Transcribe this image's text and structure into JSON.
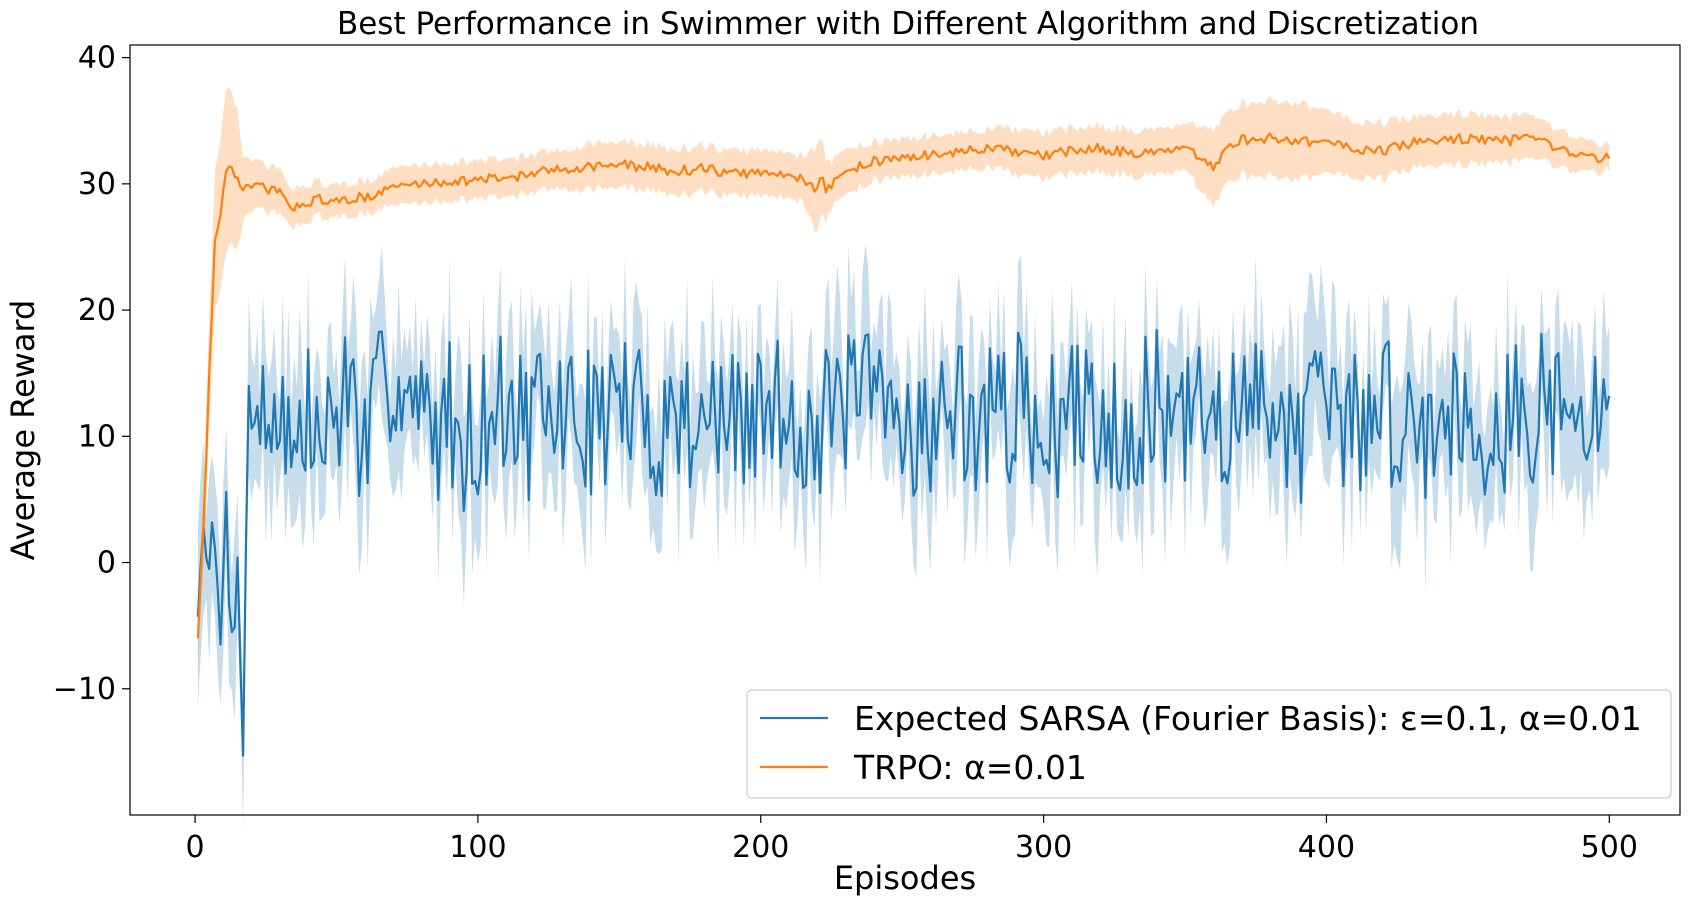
{
  "chart_data": {
    "type": "line",
    "title": "Best Performance in Swimmer with Different Algorithm and Discretization",
    "xlabel": "Episodes",
    "ylabel": "Average Reward",
    "xlim": [
      -23,
      525
    ],
    "ylim": [
      -20,
      41
    ],
    "xticks": [
      0,
      100,
      200,
      300,
      400,
      500
    ],
    "yticks": [
      -10,
      0,
      10,
      20,
      30,
      40
    ],
    "xtick_labels": [
      "0",
      "100",
      "200",
      "300",
      "400",
      "500"
    ],
    "ytick_labels": [
      "−10",
      "0",
      "10",
      "20",
      "30",
      "40"
    ],
    "grid": false,
    "legend_position": "lower-right",
    "shaded_band": "variability band around each series mean",
    "series": [
      {
        "name": "Expected SARSA (Fourier Basis): ε=0.1, α=0.01",
        "color": "#1f77b4",
        "band_color": "#1f77b4",
        "x": [
          1,
          3,
          5,
          7,
          9,
          11,
          13,
          15,
          17,
          19,
          25,
          30,
          35,
          40,
          45,
          50,
          55,
          60,
          65,
          70,
          75,
          80,
          85,
          90,
          95,
          100,
          110,
          120,
          130,
          140,
          150,
          160,
          170,
          180,
          190,
          200,
          210,
          220,
          230,
          240,
          250,
          260,
          270,
          280,
          290,
          300,
          310,
          320,
          330,
          340,
          350,
          360,
          370,
          380,
          390,
          400,
          410,
          420,
          430,
          440,
          450,
          460,
          470,
          480,
          490,
          500
        ],
        "y": [
          -4.3,
          2.8,
          -0.5,
          1.2,
          -6.5,
          5.6,
          -5.5,
          0.4,
          -15.3,
          14.0,
          10.5,
          13.5,
          8.0,
          11.5,
          9.0,
          12.0,
          14.5,
          8.0,
          12.5,
          16.0,
          13.0,
          11.0,
          10.5,
          12.0,
          10.0,
          11.0,
          12.5,
          10.5,
          12.0,
          11.0,
          13.0,
          10.5,
          11.5,
          12.0,
          10.5,
          11.5,
          12.5,
          10.0,
          13.0,
          12.5,
          11.5,
          10.5,
          12.0,
          11.0,
          12.5,
          10.5,
          11.5,
          12.0,
          11.0,
          12.5,
          10.5,
          12.0,
          11.0,
          13.5,
          10.5,
          12.0,
          11.0,
          12.5,
          10.5,
          11.5,
          12.5,
          10.5,
          12.0,
          12.5,
          10.5,
          13.2
        ],
        "amplitude": [
          2,
          3,
          3,
          3,
          3,
          4,
          4,
          4,
          2,
          6,
          6,
          6,
          6,
          6,
          6,
          6,
          6,
          6,
          6,
          6,
          6,
          6,
          6,
          6,
          6,
          6,
          6,
          6,
          6,
          6,
          6,
          6,
          6,
          6,
          6,
          6,
          6,
          6,
          6,
          6,
          6,
          6,
          6,
          6,
          6,
          6,
          6,
          6,
          6,
          6,
          6,
          6,
          6,
          6,
          6,
          6,
          6,
          6,
          6,
          6,
          6,
          6,
          6,
          6,
          6,
          3
        ],
        "band_halfwidth": 3.0
      },
      {
        "name": "TRPO: α=0.01",
        "color": "#ff7f0e",
        "band_color": "#ff7f0e",
        "x": [
          1,
          3,
          5,
          7,
          9,
          11,
          13,
          15,
          17,
          20,
          25,
          30,
          33,
          38,
          45,
          50,
          55,
          60,
          65,
          70,
          80,
          90,
          100,
          110,
          120,
          130,
          140,
          150,
          160,
          170,
          180,
          190,
          200,
          210,
          215,
          220,
          225,
          230,
          240,
          250,
          260,
          270,
          280,
          290,
          300,
          310,
          320,
          330,
          340,
          350,
          355,
          360,
          365,
          370,
          380,
          390,
          400,
          410,
          420,
          430,
          440,
          450,
          460,
          470,
          478,
          482,
          490,
          500
        ],
        "y": [
          -6.0,
          3.0,
          15.0,
          25.5,
          27.5,
          31.0,
          31.3,
          30.5,
          29.5,
          29.8,
          29.6,
          29.5,
          28.0,
          28.5,
          28.8,
          28.5,
          28.8,
          29.0,
          29.2,
          29.8,
          30.0,
          30.2,
          30.3,
          30.5,
          30.8,
          31.2,
          31.4,
          31.5,
          31.3,
          31.0,
          31.2,
          30.8,
          30.9,
          30.6,
          30.5,
          30.0,
          29.8,
          31.0,
          31.8,
          32.0,
          32.3,
          32.5,
          32.8,
          32.5,
          32.2,
          32.6,
          32.8,
          32.5,
          32.4,
          32.8,
          32.0,
          31.2,
          33.0,
          33.5,
          33.6,
          33.4,
          33.3,
          32.8,
          32.6,
          33.2,
          33.5,
          33.6,
          33.4,
          33.5,
          33.2,
          32.6,
          32.3,
          32.0
        ],
        "amplitude": [
          0.3,
          0.5,
          0.5,
          0.5,
          0.5,
          0.5,
          0.4,
          0.4,
          0.4,
          0.4,
          0.4,
          0.4,
          0.4,
          0.4,
          0.4,
          0.4,
          0.4,
          0.4,
          0.4,
          0.4,
          0.4,
          0.4,
          0.4,
          0.4,
          0.4,
          0.4,
          0.4,
          0.4,
          0.4,
          0.4,
          0.4,
          0.4,
          0.4,
          0.4,
          0.4,
          1.0,
          0.4,
          0.4,
          0.4,
          0.4,
          0.4,
          0.4,
          0.4,
          0.4,
          0.4,
          0.4,
          0.4,
          0.4,
          0.4,
          0.4,
          0.4,
          0.4,
          0.4,
          0.4,
          0.4,
          0.4,
          0.4,
          0.4,
          0.4,
          0.4,
          0.4,
          0.4,
          0.4,
          0.4,
          0.4,
          0.4,
          0.4,
          0.4
        ],
        "band_halfwidth": [
          2.5,
          3.5,
          4.5,
          5.5,
          6.0,
          6.5,
          6.0,
          5.5,
          2.5,
          2.0,
          1.8,
          1.8,
          1.5,
          1.5,
          1.3,
          1.3,
          1.3,
          1.3,
          1.3,
          1.5,
          1.5,
          1.5,
          1.5,
          1.5,
          1.5,
          1.5,
          1.8,
          1.8,
          1.8,
          1.8,
          1.8,
          1.8,
          1.8,
          1.8,
          1.8,
          3.5,
          1.8,
          1.8,
          1.5,
          1.5,
          1.5,
          1.5,
          1.5,
          1.8,
          1.8,
          1.8,
          1.8,
          1.8,
          1.8,
          1.8,
          2.5,
          3.0,
          2.8,
          2.8,
          3.0,
          3.0,
          2.5,
          2.2,
          2.2,
          2.0,
          2.0,
          2.0,
          1.8,
          1.8,
          1.5,
          1.5,
          1.3,
          1.0
        ]
      }
    ]
  }
}
